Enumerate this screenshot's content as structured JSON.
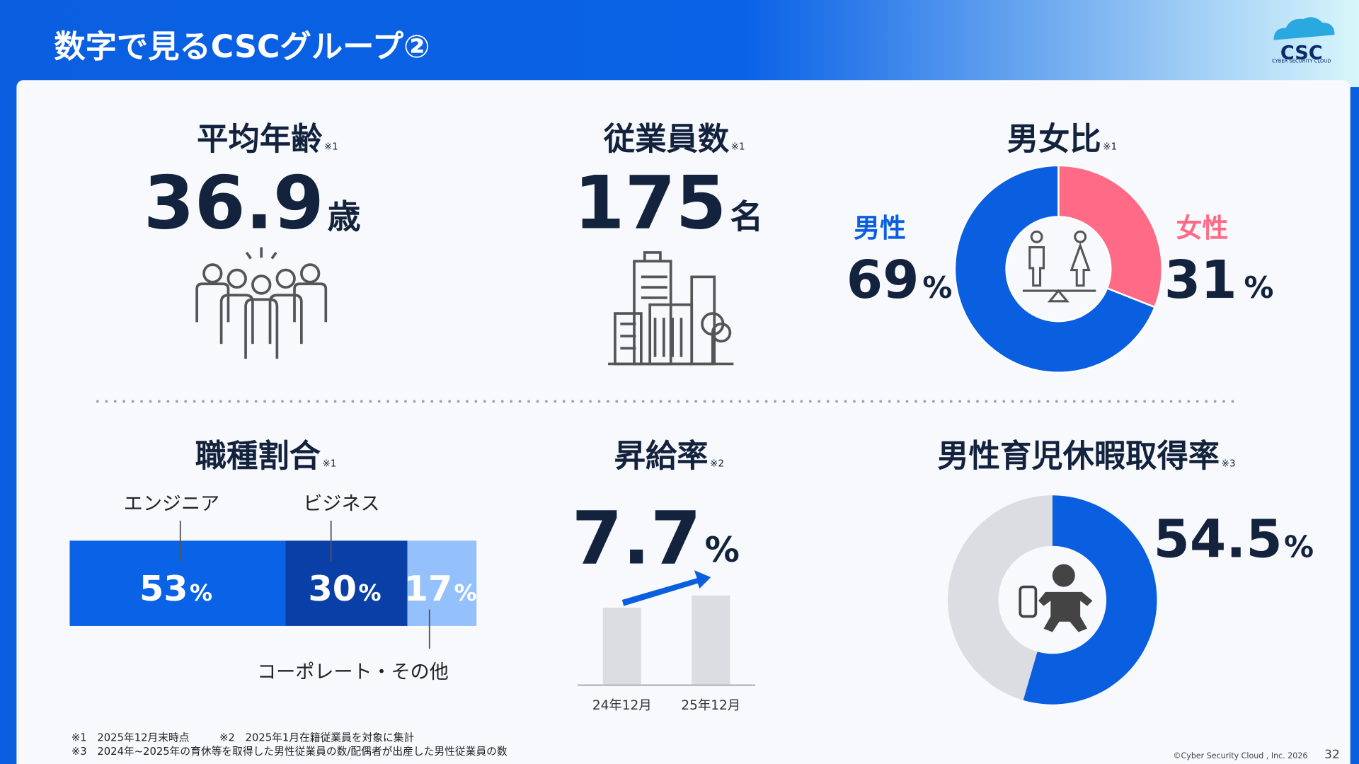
{
  "header": {
    "title": "数字で見るCSCグループ②",
    "logo": "CSC",
    "logo_sub": "CYBER SECURITY CLOUD"
  },
  "average_age": {
    "label": "平均年齢",
    "note": "※1",
    "value": 36.9,
    "unit": "歳"
  },
  "employees": {
    "label": "従業員数",
    "note": "※1",
    "value": 175,
    "unit": "名"
  },
  "gender": {
    "label": "男女比",
    "note": "※1",
    "male": {
      "label": "男性",
      "value": 69,
      "unit": "%",
      "color": "#0a5fe0"
    },
    "female": {
      "label": "女性",
      "value": 31,
      "unit": "%",
      "color": "#ff6b86"
    }
  },
  "job_types": {
    "label": "職種割合",
    "note": "※1",
    "segments": [
      {
        "name": "エンジニア",
        "value": 53,
        "unit": "%",
        "color": "#0a62e6"
      },
      {
        "name": "ビジネス",
        "value": 30,
        "unit": "%",
        "color": "#0a3fa8"
      },
      {
        "name": "コーポレート・その他",
        "value": 17,
        "unit": "%",
        "color": "#94c1fb"
      }
    ]
  },
  "raise": {
    "label": "昇給率",
    "note": "※2",
    "value": 7.7,
    "unit": "%",
    "categories": [
      "24年12月",
      "25年12月"
    ]
  },
  "paternity": {
    "label": "男性育児休暇取得率",
    "note": "※3",
    "value": 54.5,
    "unit": "%",
    "color": "#0a5fe0",
    "rest_color": "#dcdde2"
  },
  "footnotes": [
    "※1　2025年12月末時点",
    "※2　2025年1月在籍従業員を対象に集計",
    "※3　2024年~2025年の育休等を取得した男性従業員の数/配偶者が出産した男性従業員の数"
  ],
  "copyright": "©Cyber Security Cloud , Inc. 2026",
  "page": 32
}
